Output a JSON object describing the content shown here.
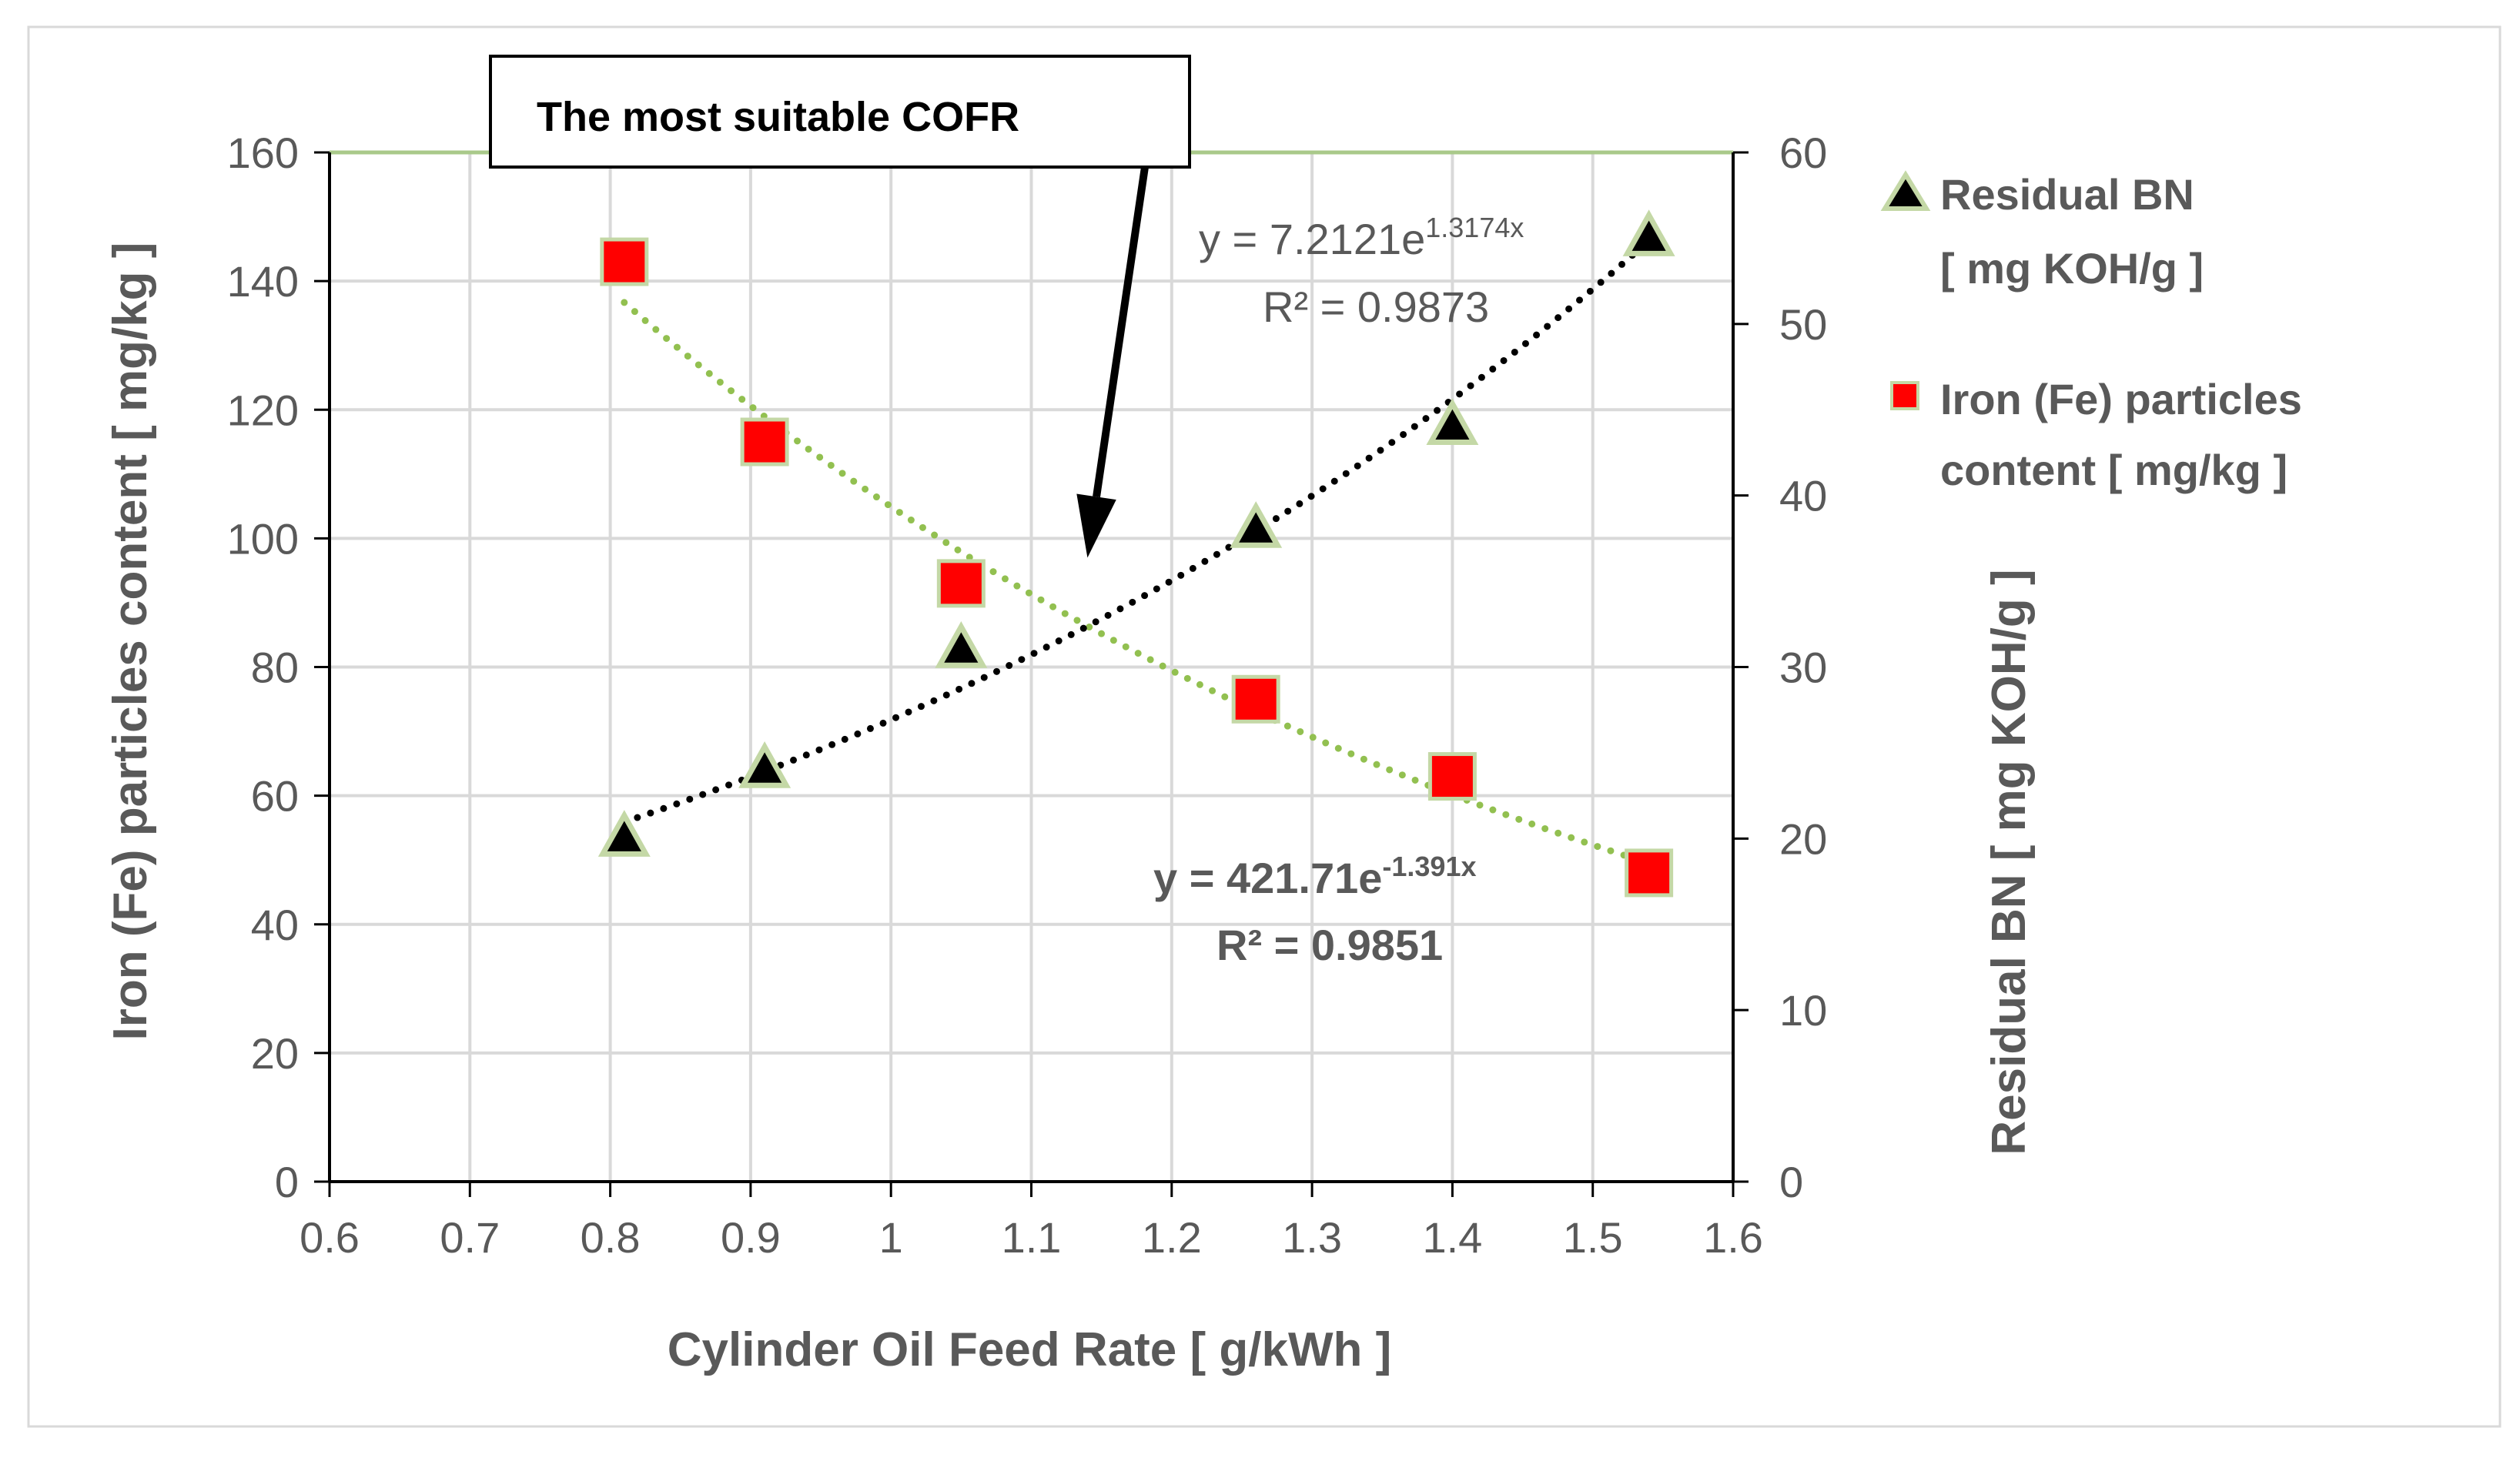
{
  "chart_data": {
    "type": "scatter",
    "title": "",
    "xlabel": "Cylinder Oil Feed Rate  [ g/kWh ]",
    "ylabel_left": "Iron (Fe) particles content  [ mg/kg ]",
    "ylabel_right": "Residual BN  [ mg KOH/g ]",
    "xlim": [
      0.6,
      1.6
    ],
    "ylim_left": [
      0,
      160
    ],
    "ylim_right": [
      0,
      60
    ],
    "x_ticks": [
      "0.6",
      "0.7",
      "0.8",
      "0.9",
      "1",
      "1.1",
      "1.2",
      "1.3",
      "1.4",
      "1.5",
      "1.6"
    ],
    "y_left_ticks": [
      "0",
      "20",
      "40",
      "60",
      "80",
      "100",
      "120",
      "140",
      "160"
    ],
    "y_right_ticks": [
      "0",
      "10",
      "20",
      "30",
      "40",
      "50",
      "60"
    ],
    "grid": true,
    "series": [
      {
        "name": "Iron (Fe) particles content  [ mg/kg ]",
        "legend_line1": "Iron (Fe) particles",
        "legend_line2": "content  [ mg/kg ]",
        "axis": "left",
        "marker": "square",
        "color": "#ff0000",
        "x": [
          0.81,
          0.91,
          1.05,
          1.26,
          1.4,
          1.54
        ],
        "y": [
          143,
          115,
          93,
          75,
          63,
          48
        ],
        "trendline": {
          "type": "exponential",
          "a": 421.71,
          "b": -1.391,
          "color": "#92c050",
          "equation_main": "y = 421.71e",
          "equation_exp": "-1.391x",
          "r2_label": "R² = 0.9851"
        }
      },
      {
        "name": "Residual BN  [ mg KOH/g ]",
        "legend_line1": "Residual BN",
        "legend_line2": "[ mg KOH/g ]",
        "axis": "right",
        "marker": "triangle",
        "color": "#000000",
        "x": [
          0.81,
          0.91,
          1.05,
          1.26,
          1.4,
          1.54
        ],
        "y": [
          20,
          24,
          31,
          38,
          44,
          55
        ],
        "trendline": {
          "type": "exponential",
          "a": 7.2121,
          "b": 1.3174,
          "color": "#000000",
          "equation_main": "y = 7.2121e",
          "equation_exp": "1.3174x",
          "r2_label": "R² = 0.9873"
        }
      }
    ],
    "annotations": [
      {
        "text": "The most suitable COFR",
        "pointer_x": 1.14,
        "pointer_y_left": 97
      }
    ],
    "colors": {
      "grid": "#d9d9d9",
      "top_gridline": "#a9c98a",
      "axis": "#000000",
      "text": "#595959",
      "marker_outline": "#c4d8a6"
    }
  }
}
